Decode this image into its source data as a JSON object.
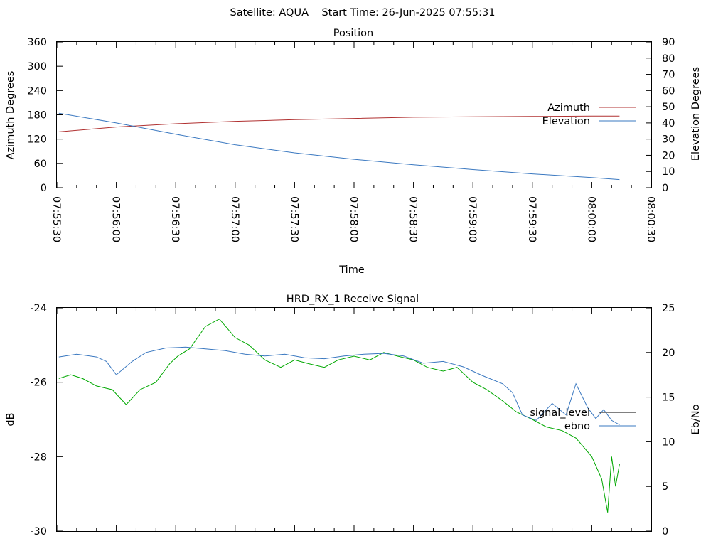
{
  "header": {
    "title": "Satellite: AQUA    Start Time: 26-Jun-2025 07:55:31"
  },
  "chart_data": [
    {
      "type": "line",
      "title": "Position",
      "xlabel": "Time",
      "ylabel": "Azimuth Degrees",
      "y2label": "Elevation Degrees",
      "x_ticks": [
        "07:55:30",
        "07:56:00",
        "07:56:30",
        "07:57:00",
        "07:57:30",
        "07:58:00",
        "07:58:30",
        "07:59:00",
        "07:59:30",
        "08:00:00",
        "08:00:30"
      ],
      "x_range": [
        "07:55:30",
        "08:00:30"
      ],
      "ylim": [
        0,
        360
      ],
      "y_ticks": [
        0,
        60,
        120,
        180,
        240,
        300,
        360
      ],
      "y2lim": [
        0,
        90
      ],
      "y2_ticks": [
        0,
        10,
        20,
        30,
        40,
        50,
        60,
        70,
        80,
        90
      ],
      "legend_position": "right",
      "series": [
        {
          "name": "Azimuth",
          "axis": "y",
          "color": "#b03030",
          "x": [
            "07:55:31",
            "07:56:00",
            "07:56:30",
            "07:57:00",
            "07:57:30",
            "07:58:00",
            "07:58:30",
            "07:59:00",
            "07:59:30",
            "08:00:00",
            "08:00:14"
          ],
          "y": [
            138,
            150,
            158,
            164,
            168,
            171,
            174,
            175,
            176,
            177,
            177
          ]
        },
        {
          "name": "Elevation",
          "axis": "y2",
          "color": "#3a78c0",
          "x": [
            "07:55:31",
            "07:56:00",
            "07:56:30",
            "07:57:00",
            "07:57:30",
            "07:58:00",
            "07:58:30",
            "07:59:00",
            "07:59:30",
            "08:00:00",
            "08:00:14"
          ],
          "y": [
            46,
            40,
            33,
            26.5,
            21.5,
            17.5,
            14.2,
            11.2,
            8.5,
            6.3,
            5
          ]
        }
      ]
    },
    {
      "type": "line",
      "title": "HRD_RX_1 Receive Signal",
      "ylabel": "dB",
      "y2label": "Eb/No",
      "ylim": [
        -30,
        -24
      ],
      "y_ticks": [
        -30,
        -28,
        -26,
        -24
      ],
      "y2lim": [
        0,
        25
      ],
      "y2_ticks": [
        0,
        5,
        10,
        15,
        20,
        25
      ],
      "x_range": [
        "07:55:30",
        "08:00:30"
      ],
      "legend_position": "right",
      "series": [
        {
          "name": "signal_level",
          "axis": "y",
          "color": "#00a800",
          "x": [
            "07:55:31",
            "07:55:37",
            "07:55:43",
            "07:55:50",
            "07:55:58",
            "07:56:05",
            "07:56:12",
            "07:56:20",
            "07:56:27",
            "07:56:31",
            "07:56:37",
            "07:56:45",
            "07:56:52",
            "07:57:00",
            "07:57:07",
            "07:57:15",
            "07:57:23",
            "07:57:30",
            "07:57:37",
            "07:57:45",
            "07:57:52",
            "07:58:00",
            "07:58:08",
            "07:58:15",
            "07:58:22",
            "07:58:30",
            "07:58:37",
            "07:58:45",
            "07:58:52",
            "07:59:00",
            "07:59:07",
            "07:59:15",
            "07:59:22",
            "07:59:30",
            "07:59:37",
            "07:59:45",
            "07:59:52",
            "08:00:00",
            "08:00:05",
            "08:00:08",
            "08:00:10",
            "08:00:12",
            "08:00:14"
          ],
          "y": [
            -25.9,
            -25.8,
            -25.9,
            -26.1,
            -26.2,
            -26.6,
            -26.2,
            -26.0,
            -25.5,
            -25.3,
            -25.1,
            -24.5,
            -24.3,
            -24.8,
            -25.0,
            -25.4,
            -25.6,
            -25.4,
            -25.5,
            -25.6,
            -25.4,
            -25.3,
            -25.4,
            -25.2,
            -25.3,
            -25.4,
            -25.6,
            -25.7,
            -25.6,
            -26.0,
            -26.2,
            -26.5,
            -26.8,
            -27.0,
            -27.2,
            -27.3,
            -27.5,
            -28.0,
            -28.6,
            -29.5,
            -28.0,
            -28.8,
            -28.2
          ]
        },
        {
          "name": "ebno",
          "axis": "y2",
          "color": "#3a78c0",
          "x": [
            "07:55:31",
            "07:55:40",
            "07:55:50",
            "07:55:55",
            "07:56:00",
            "07:56:08",
            "07:56:15",
            "07:56:25",
            "07:56:35",
            "07:56:45",
            "07:56:55",
            "07:57:05",
            "07:57:15",
            "07:57:25",
            "07:57:35",
            "07:57:45",
            "07:57:55",
            "07:58:05",
            "07:58:15",
            "07:58:25",
            "07:58:35",
            "07:58:45",
            "07:58:55",
            "07:59:05",
            "07:59:15",
            "07:59:20",
            "07:59:25",
            "07:59:32",
            "07:59:40",
            "07:59:47",
            "07:59:52",
            "07:59:58",
            "08:00:02",
            "08:00:06",
            "08:00:10",
            "08:00:14"
          ],
          "y": [
            19.5,
            19.8,
            19.5,
            19.0,
            17.5,
            19.0,
            20.0,
            20.5,
            20.6,
            20.4,
            20.2,
            19.8,
            19.6,
            19.8,
            19.4,
            19.3,
            19.6,
            19.8,
            19.9,
            19.6,
            18.8,
            19.0,
            18.4,
            17.4,
            16.5,
            15.5,
            13.0,
            12.4,
            14.3,
            13.0,
            16.5,
            13.8,
            12.6,
            13.6,
            12.4,
            11.9
          ]
        }
      ]
    }
  ]
}
